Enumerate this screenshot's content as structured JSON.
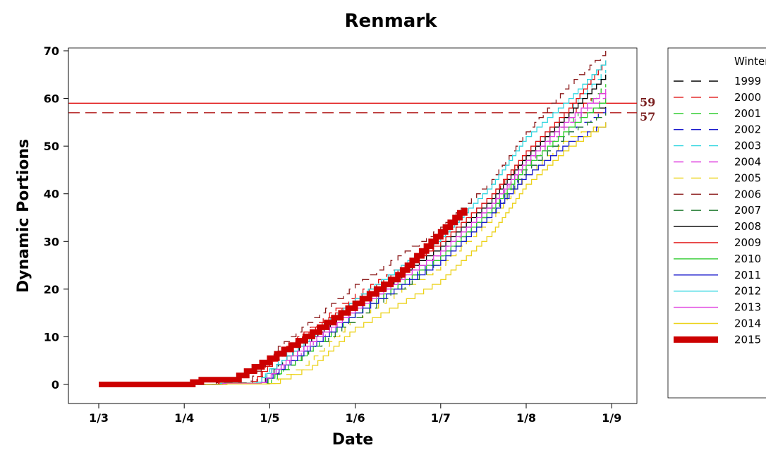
{
  "chart_data": {
    "type": "line",
    "title": "Renmark",
    "xlabel": "Date",
    "ylabel": "Dynamic Portions",
    "x_ticks": [
      "1/3",
      "1/4",
      "1/5",
      "1/6",
      "1/7",
      "1/8",
      "1/9"
    ],
    "y_ticks": [
      0,
      10,
      20,
      30,
      40,
      50,
      60,
      70
    ],
    "ylim": [
      -4,
      76
    ],
    "grid": false,
    "legend": {
      "title": "Winter",
      "position": "right"
    },
    "reference_lines": [
      {
        "value": 59,
        "label": "59",
        "color": "#e01010",
        "style": "solid"
      },
      {
        "value": 57,
        "label": "57",
        "color": "#b01818",
        "style": "dashed"
      }
    ],
    "series": [
      {
        "name": "1999",
        "color": "#000000",
        "dash": "dashed",
        "width": 1.3,
        "points": [
          [
            0,
            0
          ],
          [
            1,
            0
          ],
          [
            1.9,
            0.4
          ],
          [
            2.2,
            6
          ],
          [
            3,
            17
          ],
          [
            4,
            28
          ],
          [
            4.6,
            38
          ],
          [
            5,
            47
          ],
          [
            5.5,
            56
          ],
          [
            5.93,
            59
          ]
        ]
      },
      {
        "name": "2000",
        "color": "#e01010",
        "dash": "dashed",
        "width": 1.3,
        "points": [
          [
            0,
            0
          ],
          [
            1,
            0
          ],
          [
            1.8,
            0.6
          ],
          [
            2.1,
            7
          ],
          [
            3,
            19
          ],
          [
            4,
            30
          ],
          [
            4.6,
            40
          ],
          [
            5,
            48
          ],
          [
            5.5,
            57
          ],
          [
            5.93,
            62
          ]
        ]
      },
      {
        "name": "2001",
        "color": "#2ecc2e",
        "dash": "dashed",
        "width": 1.3,
        "points": [
          [
            0,
            0
          ],
          [
            1,
            0
          ],
          [
            1.95,
            0.2
          ],
          [
            2.3,
            5
          ],
          [
            3,
            15
          ],
          [
            4,
            27
          ],
          [
            4.6,
            37
          ],
          [
            5,
            46
          ],
          [
            5.5,
            55
          ],
          [
            5.93,
            63
          ]
        ]
      },
      {
        "name": "2002",
        "color": "#1a1acc",
        "dash": "dashed",
        "width": 1.3,
        "points": [
          [
            0,
            0
          ],
          [
            1,
            0
          ],
          [
            1.9,
            0.4
          ],
          [
            2.25,
            6
          ],
          [
            3,
            16
          ],
          [
            4,
            27
          ],
          [
            4.6,
            37
          ],
          [
            5,
            45
          ],
          [
            5.5,
            53
          ],
          [
            5.93,
            58
          ]
        ]
      },
      {
        "name": "2003",
        "color": "#33d6e0",
        "dash": "dashed",
        "width": 1.3,
        "points": [
          [
            0,
            0
          ],
          [
            1,
            0
          ],
          [
            1.85,
            0.5
          ],
          [
            2.2,
            7
          ],
          [
            3,
            18
          ],
          [
            4,
            30
          ],
          [
            4.6,
            40
          ],
          [
            5,
            49
          ],
          [
            5.5,
            58
          ],
          [
            5.93,
            66
          ]
        ]
      },
      {
        "name": "2004",
        "color": "#e040e0",
        "dash": "dashed",
        "width": 1.3,
        "points": [
          [
            0,
            0
          ],
          [
            1,
            0
          ],
          [
            1.9,
            0.4
          ],
          [
            2.3,
            6
          ],
          [
            3,
            16
          ],
          [
            4,
            28
          ],
          [
            4.6,
            38
          ],
          [
            5,
            46
          ],
          [
            5.5,
            55
          ],
          [
            5.93,
            61
          ]
        ]
      },
      {
        "name": "2005",
        "color": "#ecd21a",
        "dash": "dashed",
        "width": 1.3,
        "points": [
          [
            0,
            0
          ],
          [
            1,
            0
          ],
          [
            2,
            0.2
          ],
          [
            2.4,
            4
          ],
          [
            3,
            14
          ],
          [
            4,
            25
          ],
          [
            4.6,
            35
          ],
          [
            5,
            44
          ],
          [
            5.5,
            52
          ],
          [
            5.93,
            55
          ]
        ]
      },
      {
        "name": "2006",
        "color": "#8b1a1a",
        "dash": "dashed",
        "width": 1.3,
        "points": [
          [
            0,
            0
          ],
          [
            1,
            0
          ],
          [
            1.75,
            0.7
          ],
          [
            2.1,
            8
          ],
          [
            3,
            21
          ],
          [
            4,
            33
          ],
          [
            4.6,
            43
          ],
          [
            5,
            53
          ],
          [
            5.5,
            63
          ],
          [
            5.93,
            70
          ]
        ]
      },
      {
        "name": "2007",
        "color": "#1e7a2e",
        "dash": "dashed",
        "width": 1.3,
        "points": [
          [
            0,
            0
          ],
          [
            1,
            0
          ],
          [
            1.9,
            0.3
          ],
          [
            2.3,
            5
          ],
          [
            3,
            14
          ],
          [
            4,
            26
          ],
          [
            4.6,
            36
          ],
          [
            5,
            45
          ],
          [
            5.5,
            53
          ],
          [
            5.93,
            57
          ]
        ]
      },
      {
        "name": "2008",
        "color": "#000000",
        "dash": "solid",
        "width": 1.3,
        "points": [
          [
            0,
            0
          ],
          [
            1,
            0
          ],
          [
            1.85,
            0.5
          ],
          [
            2.2,
            6
          ],
          [
            3,
            17
          ],
          [
            4,
            29
          ],
          [
            4.6,
            39
          ],
          [
            5,
            48
          ],
          [
            5.5,
            57
          ],
          [
            5.93,
            65
          ]
        ]
      },
      {
        "name": "2009",
        "color": "#e01010",
        "dash": "solid",
        "width": 1.3,
        "points": [
          [
            0,
            0
          ],
          [
            1,
            0
          ],
          [
            1.8,
            0.6
          ],
          [
            2.15,
            7
          ],
          [
            3,
            18
          ],
          [
            4,
            30
          ],
          [
            4.6,
            40
          ],
          [
            5,
            49
          ],
          [
            5.5,
            58
          ],
          [
            5.93,
            68
          ]
        ]
      },
      {
        "name": "2010",
        "color": "#2ecc2e",
        "dash": "solid",
        "width": 1.3,
        "points": [
          [
            0,
            0
          ],
          [
            1,
            0
          ],
          [
            1.9,
            0.4
          ],
          [
            2.3,
            5
          ],
          [
            3,
            15
          ],
          [
            4,
            27
          ],
          [
            4.6,
            37
          ],
          [
            5,
            46
          ],
          [
            5.5,
            54
          ],
          [
            5.93,
            60
          ]
        ]
      },
      {
        "name": "2011",
        "color": "#1a1acc",
        "dash": "solid",
        "width": 1.3,
        "points": [
          [
            0,
            0
          ],
          [
            1,
            0
          ],
          [
            1.9,
            0.4
          ],
          [
            2.25,
            5
          ],
          [
            3,
            15
          ],
          [
            4,
            26
          ],
          [
            4.6,
            36
          ],
          [
            5,
            44
          ],
          [
            5.5,
            51
          ],
          [
            5.93,
            55
          ]
        ]
      },
      {
        "name": "2012",
        "color": "#33d6e0",
        "dash": "solid",
        "width": 1.3,
        "points": [
          [
            0,
            0
          ],
          [
            1,
            0
          ],
          [
            1.85,
            0.5
          ],
          [
            2.2,
            6
          ],
          [
            3,
            18
          ],
          [
            4,
            31
          ],
          [
            4.6,
            42
          ],
          [
            5,
            52
          ],
          [
            5.5,
            60
          ],
          [
            5.93,
            68
          ]
        ]
      },
      {
        "name": "2013",
        "color": "#e040e0",
        "dash": "solid",
        "width": 1.3,
        "points": [
          [
            0,
            0
          ],
          [
            1,
            0
          ],
          [
            1.9,
            0.4
          ],
          [
            2.25,
            6
          ],
          [
            3,
            16
          ],
          [
            4,
            28
          ],
          [
            4.6,
            38
          ],
          [
            5,
            47
          ],
          [
            5.5,
            56
          ],
          [
            5.93,
            62
          ]
        ]
      },
      {
        "name": "2014",
        "color": "#ecd21a",
        "dash": "solid",
        "width": 1.3,
        "points": [
          [
            0,
            0
          ],
          [
            1,
            0
          ],
          [
            2,
            0.2
          ],
          [
            2.5,
            4
          ],
          [
            3,
            12
          ],
          [
            4,
            22
          ],
          [
            4.6,
            32
          ],
          [
            5,
            42
          ],
          [
            5.5,
            50
          ],
          [
            5.93,
            55
          ]
        ]
      },
      {
        "name": "2015",
        "color": "#cc0000",
        "dash": "solid",
        "width": 8,
        "points": [
          [
            0,
            0
          ],
          [
            1,
            0
          ],
          [
            1.2,
            1
          ],
          [
            1.55,
            1
          ],
          [
            2,
            5.5
          ],
          [
            2.5,
            11
          ],
          [
            3,
            17
          ],
          [
            3.5,
            23
          ],
          [
            4,
            32
          ],
          [
            4.28,
            37
          ]
        ]
      }
    ]
  }
}
